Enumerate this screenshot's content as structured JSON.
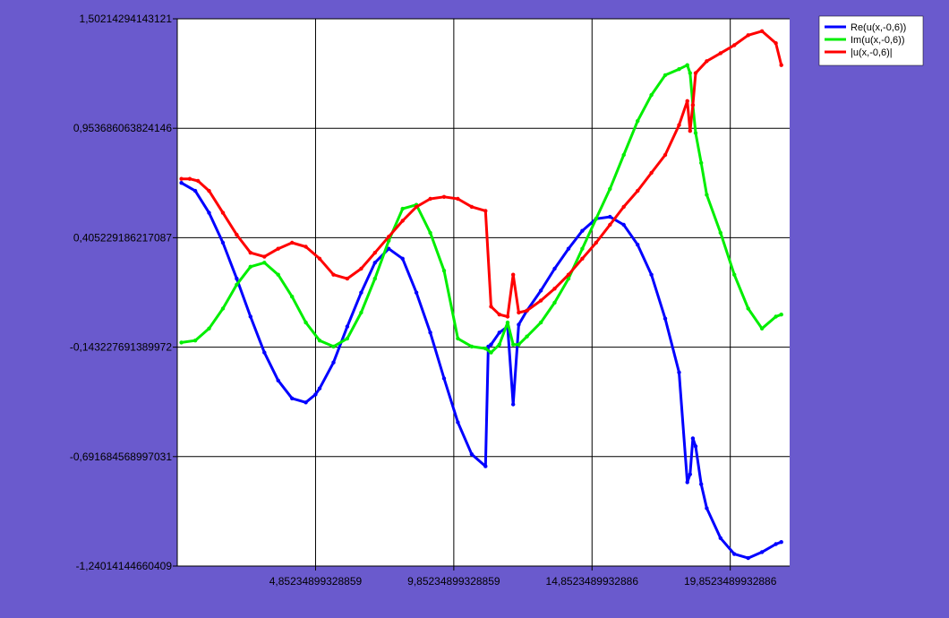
{
  "chart_data": {
    "type": "line",
    "title": "",
    "xlabel": "",
    "ylabel": "",
    "grid": true,
    "legend_position": "top-right",
    "xlim": [
      -0.15,
      22.0
    ],
    "ylim": [
      -1.24014144660409,
      1.50214294143121
    ],
    "x_ticks": [
      {
        "value": 4.85234899328859,
        "label": "4,85234899328859"
      },
      {
        "value": 9.85234899328859,
        "label": "9,85234899328859"
      },
      {
        "value": 14.8523489932886,
        "label": "14,8523489932886"
      },
      {
        "value": 19.8523489932886,
        "label": "19,8523489932886"
      }
    ],
    "y_ticks": [
      {
        "value": 1.50214294143121,
        "label": "1,50214294143121"
      },
      {
        "value": 0.953686063824146,
        "label": "0,953686063824146"
      },
      {
        "value": 0.405229186217087,
        "label": "0,405229186217087"
      },
      {
        "value": -0.143227691389972,
        "label": "-0,143227691389972"
      },
      {
        "value": -0.691684568997031,
        "label": "-0,691684568997031"
      },
      {
        "value": -1.24014144660409,
        "label": "-1,24014144660409"
      }
    ],
    "series": [
      {
        "name": "Re(u(x,-0,6))",
        "color": "#0000ff",
        "x": [
          0.0,
          0.5,
          1.0,
          1.5,
          2.0,
          2.5,
          3.0,
          3.5,
          4.0,
          4.5,
          4.85,
          5.0,
          5.5,
          6.0,
          6.5,
          7.0,
          7.5,
          8.0,
          8.5,
          9.0,
          9.5,
          10.0,
          10.5,
          11.0,
          11.1,
          11.2,
          11.5,
          11.8,
          12.0,
          12.2,
          12.5,
          13.0,
          13.5,
          14.0,
          14.5,
          15.0,
          15.5,
          16.0,
          16.5,
          17.0,
          17.5,
          18.0,
          18.3,
          18.4,
          18.5,
          18.6,
          18.8,
          19.0,
          19.5,
          20.0,
          20.5,
          21.0,
          21.5,
          21.7
        ],
        "y": [
          0.68,
          0.64,
          0.53,
          0.38,
          0.2,
          0.01,
          -0.17,
          -0.31,
          -0.4,
          -0.42,
          -0.38,
          -0.35,
          -0.22,
          -0.04,
          0.13,
          0.28,
          0.35,
          0.3,
          0.13,
          -0.07,
          -0.3,
          -0.52,
          -0.68,
          -0.74,
          -0.14,
          -0.13,
          -0.07,
          -0.04,
          -0.43,
          -0.03,
          0.04,
          0.14,
          0.25,
          0.35,
          0.44,
          0.5,
          0.51,
          0.47,
          0.37,
          0.22,
          0.0,
          -0.27,
          -0.82,
          -0.78,
          -0.6,
          -0.64,
          -0.83,
          -0.95,
          -1.1,
          -1.18,
          -1.2,
          -1.17,
          -1.13,
          -1.12
        ]
      },
      {
        "name": "Im(u(x,-0,6))",
        "color": "#00ee00",
        "x": [
          0.0,
          0.5,
          1.0,
          1.5,
          2.0,
          2.5,
          3.0,
          3.5,
          4.0,
          4.5,
          5.0,
          5.5,
          6.0,
          6.5,
          7.0,
          7.5,
          8.0,
          8.5,
          9.0,
          9.5,
          10.0,
          10.5,
          11.0,
          11.2,
          11.5,
          11.8,
          12.0,
          12.2,
          12.5,
          13.0,
          13.5,
          14.0,
          14.5,
          15.0,
          15.5,
          16.0,
          16.5,
          17.0,
          17.5,
          18.0,
          18.3,
          18.4,
          18.5,
          18.6,
          18.8,
          19.0,
          19.5,
          20.0,
          20.5,
          21.0,
          21.5,
          21.7
        ],
        "y": [
          -0.12,
          -0.11,
          -0.05,
          0.05,
          0.17,
          0.26,
          0.28,
          0.22,
          0.11,
          -0.02,
          -0.11,
          -0.14,
          -0.1,
          0.03,
          0.2,
          0.39,
          0.55,
          0.57,
          0.43,
          0.24,
          -0.1,
          -0.14,
          -0.15,
          -0.17,
          -0.13,
          -0.02,
          -0.13,
          -0.13,
          -0.09,
          -0.02,
          0.08,
          0.2,
          0.35,
          0.5,
          0.65,
          0.82,
          0.99,
          1.12,
          1.22,
          1.25,
          1.27,
          1.23,
          1.07,
          0.93,
          0.78,
          0.62,
          0.43,
          0.22,
          0.05,
          -0.05,
          0.01,
          0.02
        ]
      },
      {
        "name": "|u(x,-0,6)|",
        "color": "#ff0000",
        "x": [
          0.0,
          0.3,
          0.6,
          1.0,
          1.5,
          2.0,
          2.5,
          3.0,
          3.5,
          4.0,
          4.5,
          5.0,
          5.5,
          6.0,
          6.5,
          7.0,
          7.5,
          8.0,
          8.5,
          9.0,
          9.5,
          10.0,
          10.5,
          11.0,
          11.2,
          11.5,
          11.8,
          12.0,
          12.2,
          12.5,
          13.0,
          13.5,
          14.0,
          14.5,
          15.0,
          15.5,
          16.0,
          16.5,
          17.0,
          17.5,
          18.0,
          18.3,
          18.4,
          18.5,
          18.6,
          19.0,
          19.5,
          20.0,
          20.5,
          21.0,
          21.5,
          21.7
        ],
        "y": [
          0.7,
          0.7,
          0.69,
          0.64,
          0.53,
          0.42,
          0.33,
          0.31,
          0.35,
          0.38,
          0.36,
          0.3,
          0.22,
          0.2,
          0.25,
          0.33,
          0.41,
          0.49,
          0.56,
          0.6,
          0.61,
          0.6,
          0.56,
          0.54,
          0.06,
          0.02,
          0.01,
          0.22,
          0.03,
          0.04,
          0.09,
          0.15,
          0.22,
          0.3,
          0.38,
          0.47,
          0.56,
          0.64,
          0.73,
          0.82,
          0.97,
          1.09,
          0.94,
          1.07,
          1.23,
          1.29,
          1.33,
          1.37,
          1.42,
          1.44,
          1.38,
          1.27
        ]
      }
    ]
  }
}
